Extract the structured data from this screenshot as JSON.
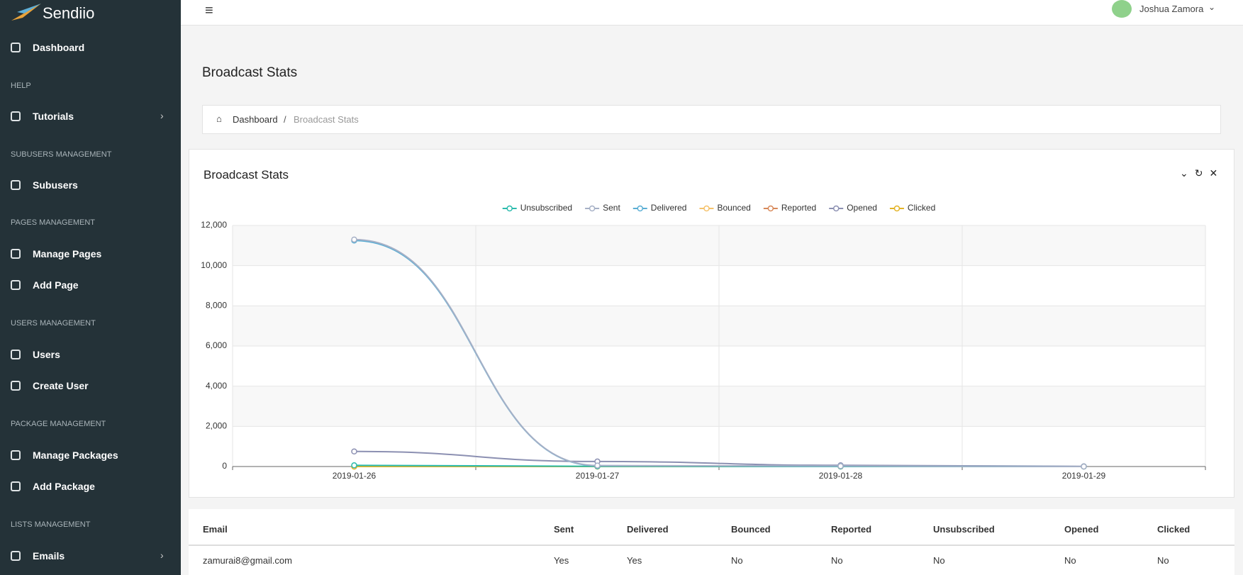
{
  "sidebar": {
    "logo": "Sendiio",
    "items": [
      {
        "label": "Dashboard"
      },
      {
        "section": "HELP"
      },
      {
        "label": "Tutorials"
      },
      {
        "section": "SUBUSERS MANAGEMENT"
      },
      {
        "label": "Subusers"
      },
      {
        "section": "PAGES MANAGEMENT"
      },
      {
        "label": "Manage Pages"
      },
      {
        "label": "Add Page"
      },
      {
        "section": "USERS MANAGEMENT"
      },
      {
        "label": "Users"
      },
      {
        "label": "Create User"
      },
      {
        "section": "PACKAGE MANAGEMENT"
      },
      {
        "label": "Manage Packages"
      },
      {
        "label": "Add Package"
      },
      {
        "section": "LISTS MANAGEMENT"
      },
      {
        "label": "Emails"
      }
    ]
  },
  "header": {
    "user": "Joshua Zamora"
  },
  "page": {
    "title": "Broadcast Stats",
    "breadcrumb": [
      "Dashboard",
      "Broadcast Stats"
    ]
  },
  "panel": {
    "title": "Broadcast Stats"
  },
  "chart_data": {
    "type": "line",
    "categories": [
      "2019-01-26",
      "2019-01-27",
      "2019-01-28",
      "2019-01-29"
    ],
    "series": [
      {
        "name": "Unsubscribed",
        "color": "#2bbbad",
        "values": [
          60,
          10,
          0,
          0
        ]
      },
      {
        "name": "Sent",
        "color": "#a6b0c6",
        "values": [
          11300,
          50,
          20,
          0
        ]
      },
      {
        "name": "Delivered",
        "color": "#5aaed4",
        "values": [
          11250,
          40,
          20,
          0
        ]
      },
      {
        "name": "Bounced",
        "color": "#f5c26b",
        "values": [
          0,
          0,
          0,
          0
        ]
      },
      {
        "name": "Reported",
        "color": "#d8895a",
        "values": [
          0,
          0,
          0,
          0
        ]
      },
      {
        "name": "Opened",
        "color": "#8c90b2",
        "values": [
          750,
          250,
          60,
          10
        ]
      },
      {
        "name": "Clicked",
        "color": "#e3b325",
        "values": [
          0,
          0,
          0,
          0
        ]
      }
    ],
    "ylim": [
      0,
      12000
    ],
    "yticks": [
      0,
      {
        "value": 2000,
        "label": "2,000"
      },
      {
        "value": 4000,
        "label": "4,000"
      },
      {
        "value": 6000,
        "label": "6,000"
      },
      {
        "value": 8000,
        "label": "8,000"
      },
      {
        "value": 10000,
        "label": "10,000"
      },
      {
        "value": 12000,
        "label": "12,000"
      }
    ],
    "grid": true,
    "legend": "top"
  },
  "table": {
    "columns": [
      "Email",
      "Sent",
      "Delivered",
      "Bounced",
      "Reported",
      "Unsubscribed",
      "Opened",
      "Clicked"
    ],
    "rows": [
      [
        "zamurai8@gmail.com",
        "Yes",
        "Yes",
        "No",
        "No",
        "No",
        "No",
        "No"
      ]
    ]
  }
}
